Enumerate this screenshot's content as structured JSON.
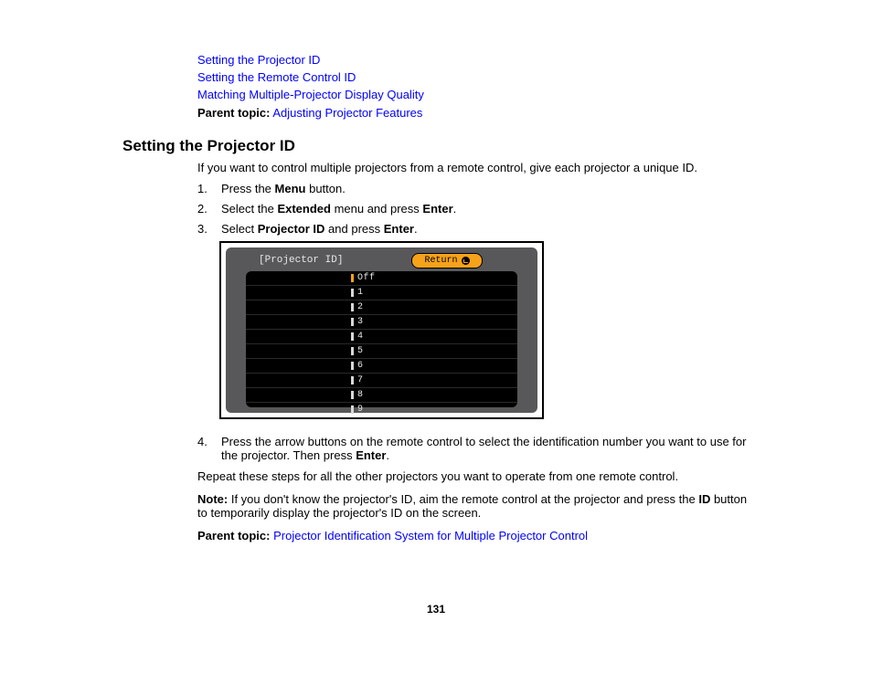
{
  "top_links": [
    "Setting the Projector ID",
    "Setting the Remote Control ID",
    "Matching Multiple-Projector Display Quality"
  ],
  "parent1": {
    "label": "Parent topic:",
    "link": "Adjusting Projector Features"
  },
  "heading": "Setting the Projector ID",
  "intro": "If you want to control multiple projectors from a remote control, give each projector a unique ID.",
  "steps": {
    "s1": {
      "n": "1.",
      "a": "Press the ",
      "b": "Menu",
      "c": " button."
    },
    "s2": {
      "n": "2.",
      "a": "Select the ",
      "b": "Extended",
      "c": " menu and press ",
      "d": "Enter",
      "e": "."
    },
    "s3": {
      "n": "3.",
      "a": "Select ",
      "b": "Projector ID",
      "c": " and press ",
      "d": "Enter",
      "e": "."
    },
    "s4": {
      "n": "4.",
      "a": "Press the arrow buttons on the remote control to select the identification number you want to use for the projector. Then press ",
      "b": "Enter",
      "c": "."
    }
  },
  "osd": {
    "title": "[Projector ID]",
    "return": "Return",
    "items": [
      "Off",
      "1",
      "2",
      "3",
      "4",
      "5",
      "6",
      "7",
      "8",
      "9"
    ],
    "selected_index": 0,
    "bg_outer": "#58585a",
    "bg_panel": "#000000",
    "btn_color": "#f6a21a",
    "text_color": "#e8e8e8"
  },
  "repeat": "Repeat these steps for all the other projectors you want to operate from one remote control.",
  "note": {
    "label": "Note:",
    "a": " If you don't know the projector's ID, aim the remote control at the projector and press the ",
    "b": "ID",
    "c": " button to temporarily display the projector's ID on the screen."
  },
  "parent2": {
    "label": "Parent topic:",
    "link": "Projector Identification System for Multiple Projector Control"
  },
  "page_number": "131",
  "colors": {
    "link": "#0000ff",
    "text": "#000000",
    "bg": "#ffffff"
  },
  "font_size_body": 13,
  "font_size_heading": 17
}
